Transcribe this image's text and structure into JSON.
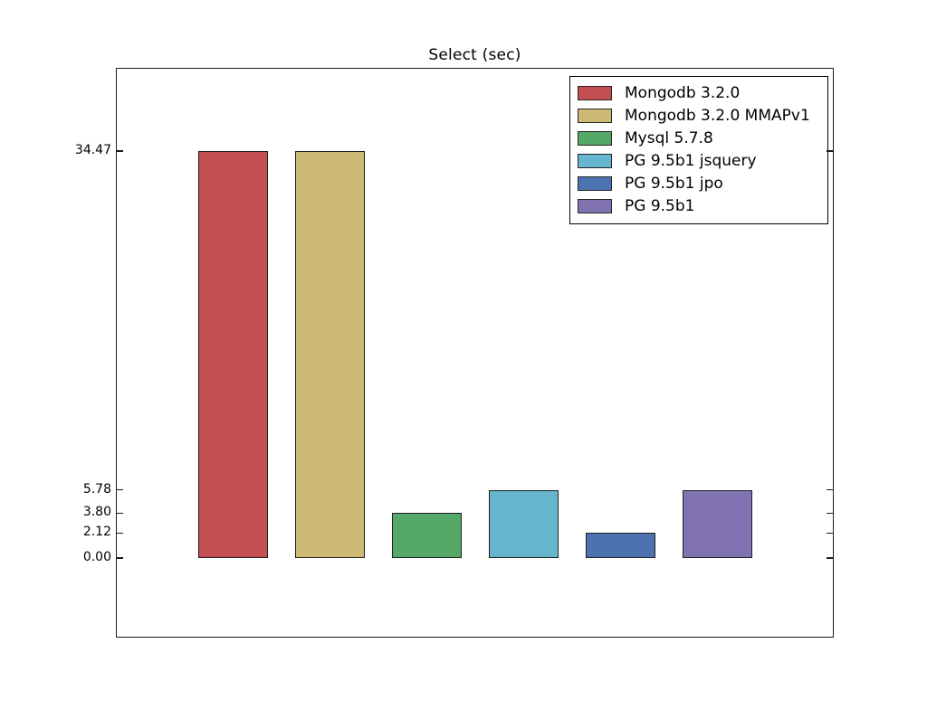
{
  "page": {
    "background_color": "#ffffff",
    "text_color": "#000000",
    "axis_color": "#1c1c1c"
  },
  "chart_data": {
    "type": "bar",
    "title": "Select (sec)",
    "xlabel": "",
    "ylabel": "",
    "grid": false,
    "legend_position": "upper right",
    "categories": [
      "Mongodb 3.2.0",
      "Mongodb 3.2.0 MMAPv1",
      "Mysql 5.7.8",
      "PG 9.5b1 jsquery",
      "PG 9.5b1 jpo",
      "PG 9.5b1"
    ],
    "series": [
      {
        "name": "Mongodb 3.2.0",
        "value": 34.47,
        "color": "#c44e52"
      },
      {
        "name": "Mongodb 3.2.0 MMAPv1",
        "value": 34.47,
        "color": "#ccb974"
      },
      {
        "name": "Mysql 5.7.8",
        "value": 3.8,
        "color": "#55a868"
      },
      {
        "name": "PG 9.5b1 jsquery",
        "value": 5.78,
        "color": "#64b5cd"
      },
      {
        "name": "PG 9.5b1 jpo",
        "value": 2.12,
        "color": "#4c72b0"
      },
      {
        "name": "PG 9.5b1",
        "value": 5.78,
        "color": "#8172b2"
      }
    ],
    "yticks": [
      0.0,
      2.12,
      3.8,
      5.78,
      34.47
    ],
    "ytick_labels": [
      "0.00",
      "2.12",
      "3.80",
      "5.78",
      "34.47"
    ],
    "ylim": [
      -6.7,
      41.4
    ],
    "bar_edge_color": "#1f1f1f"
  }
}
